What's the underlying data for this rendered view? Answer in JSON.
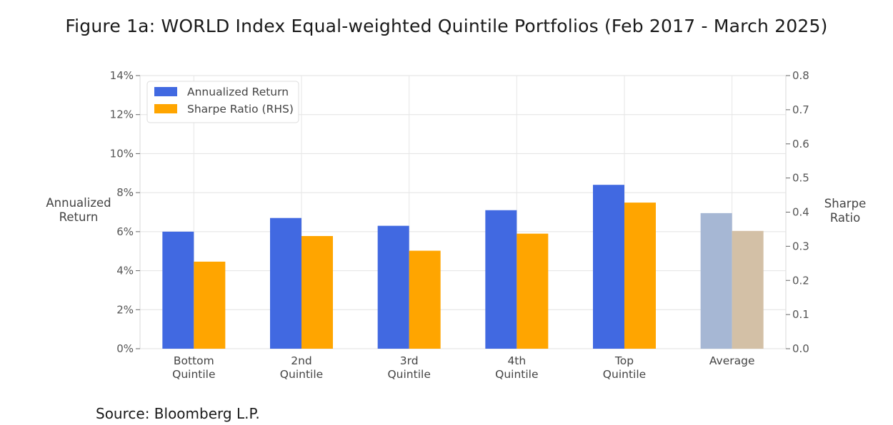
{
  "title": "Figure 1a: WORLD Index Equal-weighted Quintile Portfolios (Feb 2017 - March 2025)",
  "source": "Source: Bloomberg L.P.",
  "chart_data": {
    "type": "bar",
    "categories": [
      [
        "Bottom",
        "Quintile"
      ],
      [
        "2nd",
        "Quintile"
      ],
      [
        "3rd",
        "Quintile"
      ],
      [
        "4th",
        "Quintile"
      ],
      [
        "Top",
        "Quintile"
      ],
      [
        "Average"
      ]
    ],
    "series": [
      {
        "name": "Annualized Return",
        "axis": "left",
        "values": [
          6.0,
          6.7,
          6.3,
          7.1,
          8.4,
          6.95
        ],
        "color": "#4169e1",
        "highlight_color": "#a6b7d4"
      },
      {
        "name": "Sharpe Ratio (RHS)",
        "axis": "right",
        "values": [
          0.255,
          0.33,
          0.287,
          0.337,
          0.428,
          0.345
        ],
        "color": "#ffa500",
        "highlight_color": "#d3c0a6"
      }
    ],
    "highlight_category_index": 5,
    "y_left": {
      "label": [
        "Annualized",
        "Return"
      ],
      "range": [
        0,
        14
      ],
      "ticks": [
        0,
        2,
        4,
        6,
        8,
        10,
        12,
        14
      ],
      "tick_labels": [
        "0%",
        "2%",
        "4%",
        "6%",
        "8%",
        "10%",
        "12%",
        "14%"
      ]
    },
    "y_right": {
      "label": [
        "Sharpe",
        "Ratio"
      ],
      "range": [
        0,
        0.8
      ],
      "ticks": [
        0,
        0.1,
        0.2,
        0.3,
        0.4,
        0.5,
        0.6,
        0.7,
        0.8
      ],
      "tick_labels": [
        "0.0",
        "0.1",
        "0.2",
        "0.3",
        "0.4",
        "0.5",
        "0.6",
        "0.7",
        "0.8"
      ]
    },
    "grid": true,
    "legend_position": "top-left"
  }
}
